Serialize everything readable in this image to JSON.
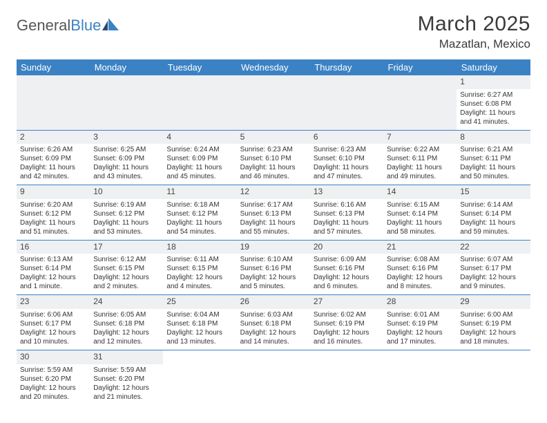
{
  "logo": {
    "part1": "General",
    "part2": "Blue"
  },
  "title": "March 2025",
  "location": "Mazatlan, Mexico",
  "weekdays": [
    "Sunday",
    "Monday",
    "Tuesday",
    "Wednesday",
    "Thursday",
    "Friday",
    "Saturday"
  ],
  "colors": {
    "header_bg": "#3b82c4",
    "header_text": "#ffffff",
    "daynum_bg": "#eef0f2",
    "border": "#3b82c4"
  },
  "days": {
    "1": {
      "sunrise": "Sunrise: 6:27 AM",
      "sunset": "Sunset: 6:08 PM",
      "daylight": "Daylight: 11 hours and 41 minutes."
    },
    "2": {
      "sunrise": "Sunrise: 6:26 AM",
      "sunset": "Sunset: 6:09 PM",
      "daylight": "Daylight: 11 hours and 42 minutes."
    },
    "3": {
      "sunrise": "Sunrise: 6:25 AM",
      "sunset": "Sunset: 6:09 PM",
      "daylight": "Daylight: 11 hours and 43 minutes."
    },
    "4": {
      "sunrise": "Sunrise: 6:24 AM",
      "sunset": "Sunset: 6:09 PM",
      "daylight": "Daylight: 11 hours and 45 minutes."
    },
    "5": {
      "sunrise": "Sunrise: 6:23 AM",
      "sunset": "Sunset: 6:10 PM",
      "daylight": "Daylight: 11 hours and 46 minutes."
    },
    "6": {
      "sunrise": "Sunrise: 6:23 AM",
      "sunset": "Sunset: 6:10 PM",
      "daylight": "Daylight: 11 hours and 47 minutes."
    },
    "7": {
      "sunrise": "Sunrise: 6:22 AM",
      "sunset": "Sunset: 6:11 PM",
      "daylight": "Daylight: 11 hours and 49 minutes."
    },
    "8": {
      "sunrise": "Sunrise: 6:21 AM",
      "sunset": "Sunset: 6:11 PM",
      "daylight": "Daylight: 11 hours and 50 minutes."
    },
    "9": {
      "sunrise": "Sunrise: 6:20 AM",
      "sunset": "Sunset: 6:12 PM",
      "daylight": "Daylight: 11 hours and 51 minutes."
    },
    "10": {
      "sunrise": "Sunrise: 6:19 AM",
      "sunset": "Sunset: 6:12 PM",
      "daylight": "Daylight: 11 hours and 53 minutes."
    },
    "11": {
      "sunrise": "Sunrise: 6:18 AM",
      "sunset": "Sunset: 6:12 PM",
      "daylight": "Daylight: 11 hours and 54 minutes."
    },
    "12": {
      "sunrise": "Sunrise: 6:17 AM",
      "sunset": "Sunset: 6:13 PM",
      "daylight": "Daylight: 11 hours and 55 minutes."
    },
    "13": {
      "sunrise": "Sunrise: 6:16 AM",
      "sunset": "Sunset: 6:13 PM",
      "daylight": "Daylight: 11 hours and 57 minutes."
    },
    "14": {
      "sunrise": "Sunrise: 6:15 AM",
      "sunset": "Sunset: 6:14 PM",
      "daylight": "Daylight: 11 hours and 58 minutes."
    },
    "15": {
      "sunrise": "Sunrise: 6:14 AM",
      "sunset": "Sunset: 6:14 PM",
      "daylight": "Daylight: 11 hours and 59 minutes."
    },
    "16": {
      "sunrise": "Sunrise: 6:13 AM",
      "sunset": "Sunset: 6:14 PM",
      "daylight": "Daylight: 12 hours and 1 minute."
    },
    "17": {
      "sunrise": "Sunrise: 6:12 AM",
      "sunset": "Sunset: 6:15 PM",
      "daylight": "Daylight: 12 hours and 2 minutes."
    },
    "18": {
      "sunrise": "Sunrise: 6:11 AM",
      "sunset": "Sunset: 6:15 PM",
      "daylight": "Daylight: 12 hours and 4 minutes."
    },
    "19": {
      "sunrise": "Sunrise: 6:10 AM",
      "sunset": "Sunset: 6:16 PM",
      "daylight": "Daylight: 12 hours and 5 minutes."
    },
    "20": {
      "sunrise": "Sunrise: 6:09 AM",
      "sunset": "Sunset: 6:16 PM",
      "daylight": "Daylight: 12 hours and 6 minutes."
    },
    "21": {
      "sunrise": "Sunrise: 6:08 AM",
      "sunset": "Sunset: 6:16 PM",
      "daylight": "Daylight: 12 hours and 8 minutes."
    },
    "22": {
      "sunrise": "Sunrise: 6:07 AM",
      "sunset": "Sunset: 6:17 PM",
      "daylight": "Daylight: 12 hours and 9 minutes."
    },
    "23": {
      "sunrise": "Sunrise: 6:06 AM",
      "sunset": "Sunset: 6:17 PM",
      "daylight": "Daylight: 12 hours and 10 minutes."
    },
    "24": {
      "sunrise": "Sunrise: 6:05 AM",
      "sunset": "Sunset: 6:18 PM",
      "daylight": "Daylight: 12 hours and 12 minutes."
    },
    "25": {
      "sunrise": "Sunrise: 6:04 AM",
      "sunset": "Sunset: 6:18 PM",
      "daylight": "Daylight: 12 hours and 13 minutes."
    },
    "26": {
      "sunrise": "Sunrise: 6:03 AM",
      "sunset": "Sunset: 6:18 PM",
      "daylight": "Daylight: 12 hours and 14 minutes."
    },
    "27": {
      "sunrise": "Sunrise: 6:02 AM",
      "sunset": "Sunset: 6:19 PM",
      "daylight": "Daylight: 12 hours and 16 minutes."
    },
    "28": {
      "sunrise": "Sunrise: 6:01 AM",
      "sunset": "Sunset: 6:19 PM",
      "daylight": "Daylight: 12 hours and 17 minutes."
    },
    "29": {
      "sunrise": "Sunrise: 6:00 AM",
      "sunset": "Sunset: 6:19 PM",
      "daylight": "Daylight: 12 hours and 18 minutes."
    },
    "30": {
      "sunrise": "Sunrise: 5:59 AM",
      "sunset": "Sunset: 6:20 PM",
      "daylight": "Daylight: 12 hours and 20 minutes."
    },
    "31": {
      "sunrise": "Sunrise: 5:59 AM",
      "sunset": "Sunset: 6:20 PM",
      "daylight": "Daylight: 12 hours and 21 minutes."
    }
  },
  "layout": [
    [
      null,
      null,
      null,
      null,
      null,
      null,
      "1"
    ],
    [
      "2",
      "3",
      "4",
      "5",
      "6",
      "7",
      "8"
    ],
    [
      "9",
      "10",
      "11",
      "12",
      "13",
      "14",
      "15"
    ],
    [
      "16",
      "17",
      "18",
      "19",
      "20",
      "21",
      "22"
    ],
    [
      "23",
      "24",
      "25",
      "26",
      "27",
      "28",
      "29"
    ],
    [
      "30",
      "31",
      null,
      null,
      null,
      null,
      null
    ]
  ]
}
